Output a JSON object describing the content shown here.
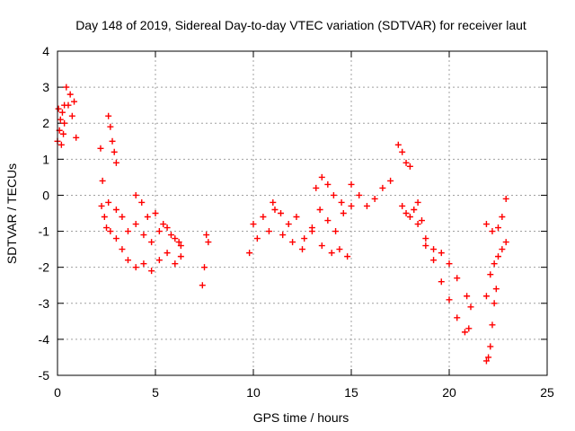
{
  "chart_data": {
    "type": "scatter",
    "title": "Day 148 of 2019, Sidereal Day-to-day VTEC variation (SDTVAR) for receiver laut",
    "xlabel": "GPS time / hours",
    "ylabel": "SDTVAR / TECUs",
    "xlim": [
      0,
      25
    ],
    "ylim": [
      -5,
      4
    ],
    "xticks": [
      0,
      5,
      10,
      15,
      20,
      25
    ],
    "yticks": [
      -5,
      -4,
      -3,
      -2,
      -1,
      0,
      1,
      2,
      3,
      4
    ],
    "grid": true,
    "marker": "+",
    "color": "#ff0000",
    "series": [
      {
        "name": "seg-0.0-0.35",
        "x": [
          0.0,
          0.05,
          0.1,
          0.15,
          0.2,
          0.25,
          0.3,
          0.35
        ],
        "y": [
          1.5,
          2.4,
          1.8,
          2.1,
          1.4,
          2.3,
          1.7,
          2.5
        ]
      },
      {
        "name": "seg-0.35-0.95",
        "x": [
          0.35,
          0.45,
          0.55,
          0.65,
          0.75,
          0.85,
          0.95
        ],
        "y": [
          2.0,
          3.0,
          2.5,
          2.8,
          2.2,
          2.6,
          1.6
        ]
      },
      {
        "name": "seg-2.2-2.7",
        "x": [
          2.2,
          2.25,
          2.3,
          2.4,
          2.5,
          2.6,
          2.7
        ],
        "y": [
          1.3,
          -0.3,
          0.4,
          -0.6,
          -0.9,
          -0.2,
          -1.0
        ]
      },
      {
        "name": "seg-2.6-3.0",
        "x": [
          2.6,
          2.7,
          2.8,
          2.9,
          3.0
        ],
        "y": [
          2.2,
          1.9,
          1.5,
          1.2,
          0.9
        ]
      },
      {
        "name": "seg-3.0-6.3-a",
        "x": [
          3.0,
          3.3,
          3.6,
          4.0,
          4.4,
          4.8,
          5.2,
          5.6,
          6.0,
          6.3
        ],
        "y": [
          -1.2,
          -1.5,
          -1.8,
          -2.0,
          -1.9,
          -2.1,
          -1.8,
          -1.6,
          -1.9,
          -1.7
        ]
      },
      {
        "name": "seg-3.0-6.3-b",
        "x": [
          3.0,
          3.3,
          3.6,
          4.0,
          4.4,
          4.8,
          5.2,
          5.6,
          6.0,
          6.3
        ],
        "y": [
          -0.4,
          -0.6,
          -1.0,
          -0.8,
          -1.1,
          -1.3,
          -1.0,
          -0.9,
          -1.2,
          -1.4
        ]
      },
      {
        "name": "seg-4.0-6.2-c",
        "x": [
          4.0,
          4.3,
          4.6,
          5.0,
          5.4,
          5.8,
          6.2
        ],
        "y": [
          0.0,
          -0.2,
          -0.6,
          -0.5,
          -0.8,
          -1.1,
          -1.3
        ]
      },
      {
        "name": "seg-7.4-7.7",
        "x": [
          7.4,
          7.5,
          7.6,
          7.7
        ],
        "y": [
          -2.5,
          -2.0,
          -1.1,
          -1.3
        ]
      },
      {
        "name": "seg-9.8-11.1",
        "x": [
          9.8,
          10.0,
          10.2,
          10.5,
          10.8,
          11.1
        ],
        "y": [
          -1.6,
          -0.8,
          -1.2,
          -0.6,
          -1.0,
          -0.4
        ]
      },
      {
        "name": "seg-11.0-15.0-a",
        "x": [
          11.0,
          11.4,
          11.8,
          12.2,
          12.6,
          13.0,
          13.4,
          13.8,
          14.2,
          14.6,
          15.0
        ],
        "y": [
          -0.2,
          -0.5,
          -0.8,
          -0.6,
          -1.2,
          -0.9,
          -0.4,
          -0.7,
          -1.0,
          -0.5,
          -0.3
        ]
      },
      {
        "name": "seg-11.5-14.8-b",
        "x": [
          11.5,
          12.0,
          12.5,
          13.0,
          13.5,
          14.0,
          14.4,
          14.8
        ],
        "y": [
          -1.1,
          -1.3,
          -1.5,
          -1.0,
          -1.4,
          -1.6,
          -1.5,
          -1.7
        ]
      },
      {
        "name": "seg-13.2-14.5-c",
        "x": [
          13.2,
          13.5,
          13.8,
          14.1,
          14.5
        ],
        "y": [
          0.2,
          0.5,
          0.3,
          0.0,
          -0.2
        ]
      },
      {
        "name": "seg-15.0-17.0",
        "x": [
          15.0,
          15.4,
          15.8,
          16.2,
          16.6,
          17.0
        ],
        "y": [
          0.3,
          0.0,
          -0.3,
          -0.1,
          0.2,
          0.4
        ]
      },
      {
        "name": "seg-17.4-18.0",
        "x": [
          17.4,
          17.6,
          17.8,
          18.0
        ],
        "y": [
          1.4,
          1.2,
          0.9,
          0.8
        ]
      },
      {
        "name": "seg-17.6-18.6",
        "x": [
          17.6,
          17.8,
          18.0,
          18.2,
          18.4,
          18.6
        ],
        "y": [
          -0.3,
          -0.5,
          -0.6,
          -0.4,
          -0.2,
          -0.7
        ]
      },
      {
        "name": "seg-18.4-21.0-a",
        "x": [
          18.4,
          18.8,
          19.2,
          19.6,
          20.0,
          20.4,
          20.8,
          21.0
        ],
        "y": [
          -0.8,
          -1.4,
          -1.8,
          -2.4,
          -2.9,
          -3.4,
          -3.8,
          -3.7
        ]
      },
      {
        "name": "seg-18.8-20.9-b",
        "x": [
          18.8,
          19.2,
          19.6,
          20.0,
          20.4,
          20.9
        ],
        "y": [
          -1.2,
          -1.5,
          -1.6,
          -1.9,
          -2.3,
          -2.8
        ]
      },
      {
        "name": "seg-21.1",
        "x": [
          21.1
        ],
        "y": [
          -3.1
        ]
      },
      {
        "name": "seg-21.9-22.4",
        "x": [
          21.9,
          22.0,
          22.1,
          22.2,
          22.3,
          22.4
        ],
        "y": [
          -4.6,
          -4.5,
          -4.2,
          -3.6,
          -3.0,
          -2.6
        ]
      },
      {
        "name": "seg-21.9-22.9-a",
        "x": [
          21.9,
          22.1,
          22.3,
          22.5,
          22.7,
          22.9
        ],
        "y": [
          -2.8,
          -2.2,
          -1.9,
          -1.7,
          -1.5,
          -1.3
        ]
      },
      {
        "name": "seg-21.9-22.9-b",
        "x": [
          21.9,
          22.2,
          22.5,
          22.7,
          22.9
        ],
        "y": [
          -0.8,
          -1.0,
          -0.9,
          -0.6,
          -0.1
        ]
      }
    ]
  }
}
